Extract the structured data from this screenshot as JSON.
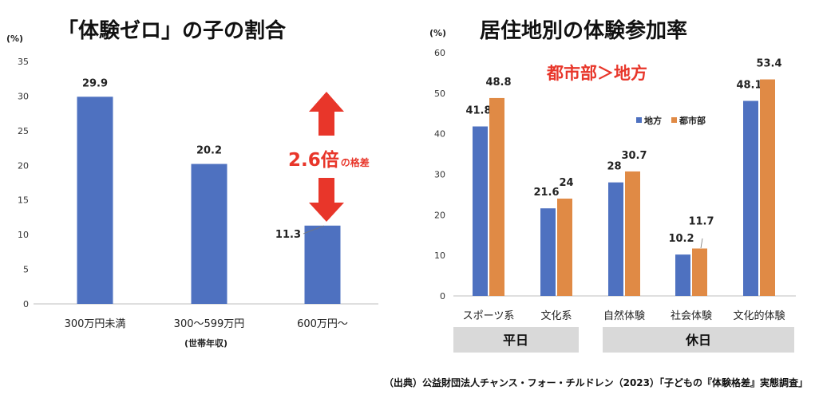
{
  "chart_data": [
    {
      "type": "bar",
      "title": "「体験ゼロ」の子の割合",
      "unit_label": "(%)",
      "ylim": [
        0,
        35
      ],
      "yticks": [
        0,
        5,
        10,
        15,
        20,
        25,
        30,
        35
      ],
      "categories": [
        "300万円未満",
        "300〜599万円",
        "600万円〜"
      ],
      "values": [
        29.9,
        20.2,
        11.3
      ],
      "value_labels": [
        "29.9",
        "20.2",
        "11.3"
      ],
      "xlabel": "(世帯年収)",
      "annotation": {
        "big": "2.6倍",
        "small": "の格差"
      },
      "color": "#4e71c0"
    },
    {
      "type": "bar",
      "title": "居住地別の体験参加率",
      "unit_label": "(%)",
      "ylim": [
        0,
        60
      ],
      "yticks": [
        0,
        10,
        20,
        30,
        40,
        50,
        60
      ],
      "categories": [
        "スポーツ系",
        "文化系",
        "自然体験",
        "社会体験",
        "文化的体験"
      ],
      "series": [
        {
          "name": "地方",
          "color": "#4e71c0",
          "values": [
            41.8,
            21.6,
            28,
            10.2,
            48.1
          ],
          "labels": [
            "41.8",
            "21.6",
            "28",
            "10.2",
            "48.1"
          ]
        },
        {
          "name": "都市部",
          "color": "#e08a45",
          "values": [
            48.8,
            24,
            30.7,
            11.7,
            53.4
          ],
          "labels": [
            "48.8",
            "24",
            "30.7",
            "11.7",
            "53.4"
          ]
        }
      ],
      "annotation": "都市部＞地方",
      "groups": [
        "平日",
        "休日"
      ],
      "legend": "top-right"
    }
  ],
  "source": "（出典）公益財団法人チャンス・フォー・チルドレン（2023）「子どもの『体験格差』実態調査」"
}
